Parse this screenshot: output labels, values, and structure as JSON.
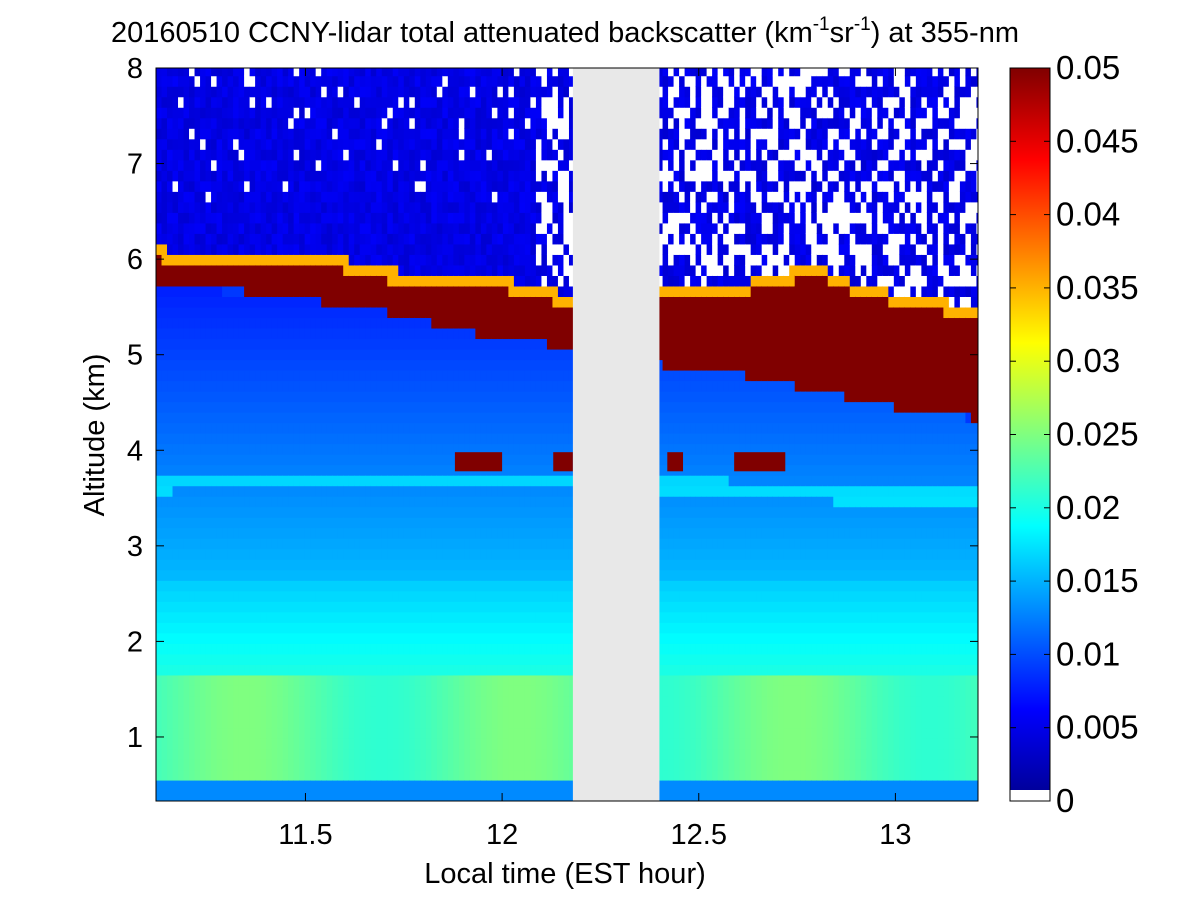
{
  "chart_data": {
    "type": "heatmap",
    "title": {
      "prefix": "20160510 CCNY-lidar total attenuated backscatter (km",
      "sup1": "-1",
      "middle": "sr",
      "sup2": "-1",
      "suffix": ") at 355-nm"
    },
    "xlabel": "Local time (EST hour)",
    "ylabel": "Altitude (km)",
    "xlim": [
      11.12,
      13.21
    ],
    "ylim": [
      0.33,
      8
    ],
    "x_ticks": [
      11.5,
      12,
      12.5,
      13
    ],
    "x_tick_labels": [
      "11.5",
      "12",
      "12.5",
      "13"
    ],
    "y_ticks": [
      1,
      2,
      3,
      4,
      5,
      6,
      7,
      8
    ],
    "y_tick_labels": [
      "1",
      "2",
      "3",
      "4",
      "5",
      "6",
      "7",
      "8"
    ],
    "data_gap": {
      "x_start": 12.18,
      "x_end": 12.4,
      "color": "#e8e8e8"
    },
    "colorbar": {
      "range": [
        0,
        0.05
      ],
      "ticks": [
        0,
        0.005,
        0.01,
        0.015,
        0.02,
        0.025,
        0.03,
        0.035,
        0.04,
        0.045,
        0.05
      ],
      "tick_labels": [
        "0",
        "0.005",
        "0.01",
        "0.015",
        "0.02",
        "0.025",
        "0.03",
        "0.035",
        "0.04",
        "0.045",
        "0.05"
      ],
      "colormap": "jet"
    },
    "features": {
      "boundary_layer_top": [
        {
          "x": 11.12,
          "y": 5.72
        },
        {
          "x": 11.3,
          "y": 5.66
        },
        {
          "x": 11.5,
          "y": 5.58
        },
        {
          "x": 11.7,
          "y": 5.45
        },
        {
          "x": 11.9,
          "y": 5.25
        },
        {
          "x": 12.1,
          "y": 5.12
        },
        {
          "x": 12.18,
          "y": 5.1
        },
        {
          "x": 12.4,
          "y": 4.9
        },
        {
          "x": 12.6,
          "y": 4.8
        },
        {
          "x": 12.8,
          "y": 4.62
        },
        {
          "x": 13.0,
          "y": 4.45
        },
        {
          "x": 13.21,
          "y": 4.33
        }
      ],
      "cloud_top": [
        {
          "x": 11.12,
          "y": 6.15
        },
        {
          "x": 11.2,
          "y": 6.0
        },
        {
          "x": 11.3,
          "y": 6.05
        },
        {
          "x": 11.4,
          "y": 6.1
        },
        {
          "x": 11.5,
          "y": 6.08
        },
        {
          "x": 11.6,
          "y": 6.0
        },
        {
          "x": 11.7,
          "y": 5.9
        },
        {
          "x": 11.8,
          "y": 5.85
        },
        {
          "x": 11.9,
          "y": 5.82
        },
        {
          "x": 12.0,
          "y": 5.8
        },
        {
          "x": 12.1,
          "y": 5.72
        },
        {
          "x": 12.18,
          "y": 5.6
        },
        {
          "x": 12.4,
          "y": 5.7
        },
        {
          "x": 12.5,
          "y": 5.68
        },
        {
          "x": 12.6,
          "y": 5.75
        },
        {
          "x": 12.7,
          "y": 5.85
        },
        {
          "x": 12.8,
          "y": 5.95
        },
        {
          "x": 12.9,
          "y": 5.75
        },
        {
          "x": 13.0,
          "y": 5.65
        },
        {
          "x": 13.1,
          "y": 5.58
        },
        {
          "x": 13.21,
          "y": 5.5
        }
      ],
      "cloud_base": [
        {
          "x": 11.12,
          "y": 5.72
        },
        {
          "x": 11.2,
          "y": 5.7
        },
        {
          "x": 11.3,
          "y": 5.7
        },
        {
          "x": 11.4,
          "y": 5.62
        },
        {
          "x": 11.5,
          "y": 5.58
        },
        {
          "x": 11.6,
          "y": 5.5
        },
        {
          "x": 11.7,
          "y": 5.35
        },
        {
          "x": 11.8,
          "y": 5.28
        },
        {
          "x": 11.9,
          "y": 5.2
        },
        {
          "x": 12.0,
          "y": 5.12
        },
        {
          "x": 12.1,
          "y": 5.05
        },
        {
          "x": 12.18,
          "y": 5.0
        },
        {
          "x": 12.4,
          "y": 4.88
        },
        {
          "x": 12.5,
          "y": 4.8
        },
        {
          "x": 12.6,
          "y": 4.75
        },
        {
          "x": 12.7,
          "y": 4.72
        },
        {
          "x": 12.8,
          "y": 4.6
        },
        {
          "x": 12.9,
          "y": 4.45
        },
        {
          "x": 13.0,
          "y": 4.42
        },
        {
          "x": 13.1,
          "y": 4.4
        },
        {
          "x": 13.21,
          "y": 4.33
        }
      ],
      "residual_layer": [
        {
          "x": 11.12,
          "y": 3.65
        },
        {
          "x": 11.5,
          "y": 3.7
        },
        {
          "x": 11.8,
          "y": 3.7
        },
        {
          "x": 12.0,
          "y": 3.68
        },
        {
          "x": 12.18,
          "y": 3.7
        },
        {
          "x": 12.4,
          "y": 3.65
        },
        {
          "x": 12.8,
          "y": 3.55
        },
        {
          "x": 13.21,
          "y": 3.5
        }
      ]
    }
  }
}
